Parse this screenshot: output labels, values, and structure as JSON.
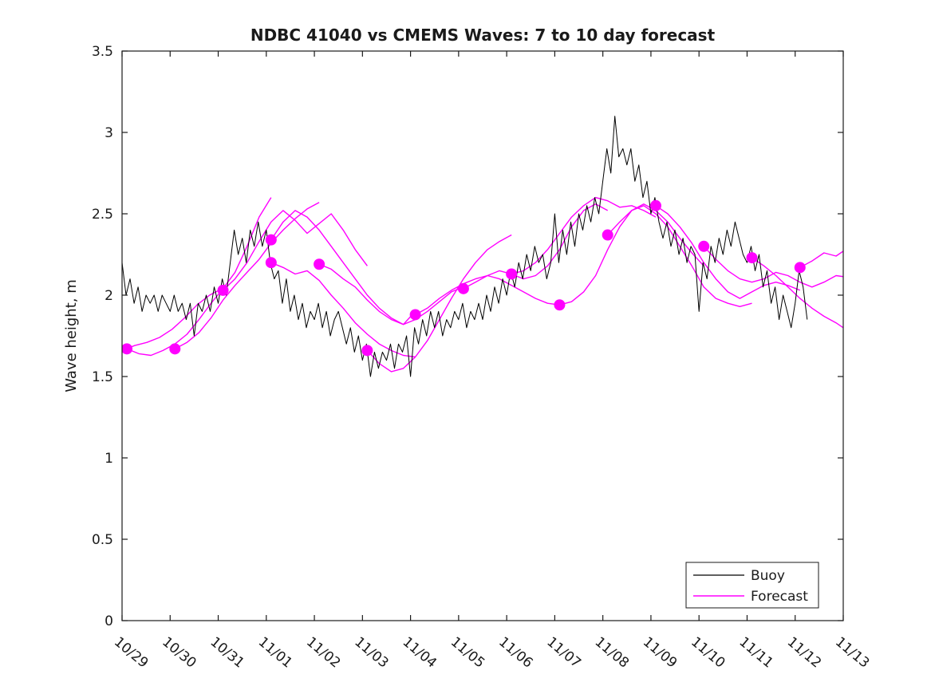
{
  "title": "NDBC 41040 vs CMEMS Waves: 7 to 10 day forecast",
  "colors": {
    "buoy": "#000000",
    "forecast": "#ff00ff",
    "axis": "#1a1a1a",
    "background": "#ffffff"
  },
  "legend": {
    "entries": [
      {
        "label": "Buoy",
        "color": "#000000"
      },
      {
        "label": "Forecast",
        "color": "#ff00ff"
      }
    ],
    "position": "bottom-right"
  },
  "chart_data": {
    "type": "line",
    "title": "NDBC 41040 vs CMEMS Waves: 7 to 10 day forecast",
    "xlabel": "",
    "ylabel": "Wave height, m",
    "ylim": [
      0,
      3.5
    ],
    "xlim_days": [
      0,
      15
    ],
    "grid": false,
    "x_tick_labels": [
      "10/29",
      "10/30",
      "10/31",
      "11/01",
      "11/02",
      "11/03",
      "11/04",
      "11/05",
      "11/06",
      "11/07",
      "11/08",
      "11/09",
      "11/10",
      "11/11",
      "11/12",
      "11/13"
    ],
    "y_tick_labels": [
      "0",
      "0.5",
      "1",
      "1.5",
      "2",
      "2.5",
      "3",
      "3.5"
    ],
    "y_tick_values": [
      0,
      0.5,
      1,
      1.5,
      2,
      2.5,
      3,
      3.5
    ],
    "series": [
      {
        "name": "Buoy",
        "type": "line",
        "color": "#000000",
        "start_day": 0,
        "step_days": 0.08333,
        "values": [
          2.2,
          2.0,
          2.1,
          1.95,
          2.05,
          1.9,
          2.0,
          1.95,
          2.0,
          1.9,
          2.0,
          1.95,
          1.9,
          2.0,
          1.9,
          1.95,
          1.85,
          1.95,
          1.75,
          1.95,
          1.9,
          2.0,
          1.9,
          2.05,
          1.95,
          2.1,
          2.0,
          2.2,
          2.4,
          2.25,
          2.35,
          2.2,
          2.4,
          2.3,
          2.45,
          2.3,
          2.4,
          2.2,
          2.1,
          2.15,
          1.95,
          2.1,
          1.9,
          2.0,
          1.85,
          1.95,
          1.8,
          1.9,
          1.85,
          1.95,
          1.8,
          1.9,
          1.75,
          1.85,
          1.9,
          1.8,
          1.7,
          1.8,
          1.65,
          1.75,
          1.6,
          1.7,
          1.5,
          1.65,
          1.55,
          1.65,
          1.6,
          1.7,
          1.55,
          1.7,
          1.65,
          1.75,
          1.5,
          1.8,
          1.7,
          1.85,
          1.75,
          1.9,
          1.8,
          1.9,
          1.75,
          1.85,
          1.8,
          1.9,
          1.85,
          1.95,
          1.8,
          1.9,
          1.85,
          1.95,
          1.85,
          2.0,
          1.9,
          2.05,
          1.95,
          2.1,
          2.0,
          2.15,
          2.05,
          2.2,
          2.1,
          2.25,
          2.15,
          2.3,
          2.2,
          2.25,
          2.1,
          2.2,
          2.5,
          2.2,
          2.4,
          2.25,
          2.45,
          2.3,
          2.5,
          2.4,
          2.55,
          2.45,
          2.6,
          2.5,
          2.7,
          2.9,
          2.75,
          3.1,
          2.85,
          2.9,
          2.8,
          2.9,
          2.7,
          2.8,
          2.6,
          2.7,
          2.5,
          2.6,
          2.45,
          2.35,
          2.45,
          2.3,
          2.4,
          2.25,
          2.35,
          2.2,
          2.3,
          2.25,
          1.9,
          2.2,
          2.1,
          2.3,
          2.2,
          2.35,
          2.25,
          2.4,
          2.3,
          2.45,
          2.35,
          2.25,
          2.2,
          2.3,
          2.15,
          2.25,
          2.05,
          2.15,
          1.95,
          2.05,
          1.85,
          2.0,
          1.9,
          1.8,
          1.95,
          2.15,
          2.05,
          1.85
        ]
      },
      {
        "name": "Forecast",
        "type": "multi-line",
        "color": "#ff00ff",
        "step_days": 0.25,
        "segments": [
          {
            "start_day": 0.0,
            "step_days": 0.26,
            "values": [
              1.66,
              1.69,
              1.71,
              1.74,
              1.79,
              1.86,
              1.94,
              2.0,
              2.04
            ]
          },
          {
            "start_day": 0.1,
            "values": [
              1.67,
              1.64,
              1.63,
              1.66,
              1.7,
              1.76,
              1.85,
              1.95,
              2.04,
              2.14,
              2.3,
              2.48,
              2.6
            ]
          },
          {
            "start_day": 1.1,
            "values": [
              1.67,
              1.71,
              1.77,
              1.86,
              1.97,
              2.06,
              2.14,
              2.22,
              2.32,
              2.4,
              2.47,
              2.53,
              2.57
            ]
          },
          {
            "start_day": 2.1,
            "values": [
              2.03,
              2.1,
              2.2,
              2.33,
              2.45,
              2.52,
              2.46,
              2.38,
              2.44,
              2.5,
              2.4,
              2.28,
              2.18
            ]
          },
          {
            "start_day": 3.1,
            "values": [
              2.34,
              2.45,
              2.52,
              2.48,
              2.4,
              2.3,
              2.2,
              2.1,
              2.0,
              1.92,
              1.86,
              1.82,
              1.9
            ]
          },
          {
            "start_day": 3.1,
            "values": [
              2.2,
              2.17,
              2.13,
              2.15,
              2.09,
              2.0,
              1.92,
              1.83,
              1.76,
              1.7,
              1.66,
              1.63,
              1.62
            ]
          },
          {
            "start_day": 4.1,
            "values": [
              2.19,
              2.16,
              2.1,
              2.05,
              1.97,
              1.9,
              1.85,
              1.82,
              1.85,
              1.9,
              1.96,
              2.02,
              2.05
            ]
          },
          {
            "start_day": 5.1,
            "values": [
              1.66,
              1.58,
              1.53,
              1.55,
              1.62,
              1.72,
              1.85,
              1.98,
              2.1,
              2.2,
              2.28,
              2.33,
              2.37
            ]
          },
          {
            "start_day": 6.1,
            "values": [
              1.88,
              1.92,
              1.98,
              2.03,
              2.07,
              2.1,
              2.12,
              2.1,
              2.06,
              2.02,
              1.98,
              1.95,
              1.94
            ]
          },
          {
            "start_day": 7.1,
            "values": [
              2.04,
              2.08,
              2.12,
              2.15,
              2.13,
              2.1,
              2.12,
              2.18,
              2.28,
              2.42,
              2.52,
              2.56,
              2.52
            ]
          },
          {
            "start_day": 8.1,
            "values": [
              2.13,
              2.15,
              2.2,
              2.28,
              2.38,
              2.48,
              2.55,
              2.6,
              2.58,
              2.54,
              2.55,
              2.52,
              2.48
            ]
          },
          {
            "start_day": 9.1,
            "values": [
              1.94,
              1.96,
              2.02,
              2.12,
              2.28,
              2.42,
              2.52,
              2.56,
              2.52,
              2.45,
              2.35,
              2.26,
              2.18
            ]
          },
          {
            "start_day": 10.1,
            "values": [
              2.37,
              2.45,
              2.52,
              2.55,
              2.5,
              2.42,
              2.3,
              2.18,
              2.05,
              1.98,
              1.95,
              1.93,
              1.95
            ]
          },
          {
            "start_day": 11.1,
            "values": [
              2.55,
              2.5,
              2.42,
              2.32,
              2.2,
              2.1,
              2.02,
              1.98,
              2.02,
              2.06,
              2.08,
              2.06,
              2.03
            ]
          },
          {
            "start_day": 12.1,
            "values": [
              2.3,
              2.22,
              2.15,
              2.1,
              2.08,
              2.1,
              2.14,
              2.12,
              2.08,
              2.05,
              2.08,
              2.12,
              2.11
            ]
          },
          {
            "start_day": 13.1,
            "values": [
              2.23,
              2.18,
              2.12,
              2.05,
              1.98,
              1.92,
              1.87,
              1.83,
              1.78
            ]
          },
          {
            "start_day": 14.1,
            "values": [
              2.17,
              2.21,
              2.26,
              2.24,
              2.29
            ]
          }
        ]
      },
      {
        "name": "Forecast start markers",
        "type": "scatter",
        "color": "#ff00ff",
        "marker_radius": 7,
        "points": [
          [
            0.1,
            1.67
          ],
          [
            1.1,
            1.67
          ],
          [
            2.1,
            2.03
          ],
          [
            3.1,
            2.34
          ],
          [
            3.1,
            2.2
          ],
          [
            4.1,
            2.19
          ],
          [
            5.1,
            1.66
          ],
          [
            6.1,
            1.88
          ],
          [
            7.1,
            2.04
          ],
          [
            8.1,
            2.13
          ],
          [
            9.1,
            1.94
          ],
          [
            10.1,
            2.37
          ],
          [
            11.1,
            2.55
          ],
          [
            12.1,
            2.3
          ],
          [
            13.1,
            2.23
          ],
          [
            14.1,
            2.17
          ]
        ]
      }
    ],
    "legend_entries": [
      "Buoy",
      "Forecast"
    ]
  }
}
